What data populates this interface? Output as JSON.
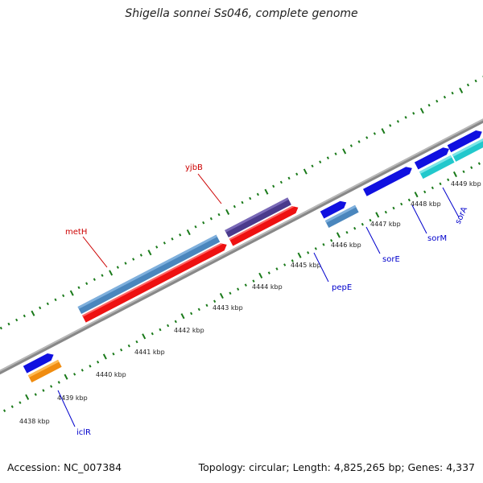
{
  "title": "Shigella sonnei Ss046, complete genome",
  "footer": {
    "accession": "Accession: NC_007384",
    "summary": "Topology: circular; Length: 4,825,265 bp; Genes: 4,337"
  },
  "map": {
    "ticks": [
      "4438 kbp",
      "4439 kbp",
      "4440 kbp",
      "4441 kbp",
      "4442 kbp",
      "4443 kbp",
      "4444 kbp",
      "4445 kbp",
      "4446 kbp",
      "4447 kbp",
      "4448 kbp",
      "4449 kbp"
    ],
    "genes": [
      {
        "name": "iclR",
        "color": "#0000cc"
      },
      {
        "name": "metH",
        "color": "#cc0000"
      },
      {
        "name": "yjbB",
        "color": "#cc0000"
      },
      {
        "name": "pepE",
        "color": "#0000cc"
      },
      {
        "name": "sorE",
        "color": "#0000cc"
      },
      {
        "name": "sorM",
        "color": "#0000cc"
      },
      {
        "name": "sorA",
        "color": "#0000cc"
      }
    ],
    "colors": {
      "backbone": "#888888",
      "ticks": "#1a7a1a",
      "blue_feature": "#1010e0",
      "steelblue_feature": "#4a86bd",
      "red_feature": "#ee1111",
      "purple_feature": "#4a3a8c",
      "cyan_feature": "#22c8cc",
      "orange_feature": "#f08c10"
    }
  }
}
